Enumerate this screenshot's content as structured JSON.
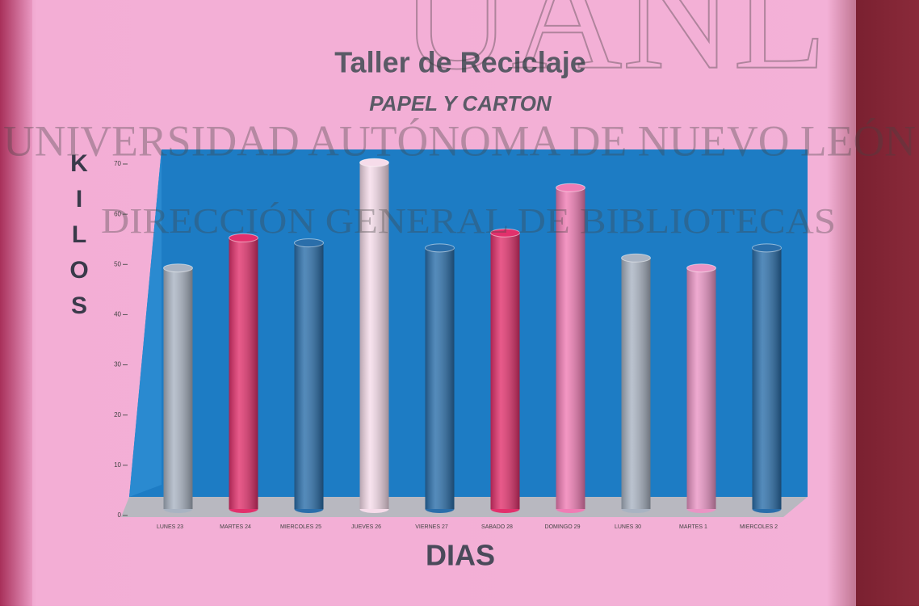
{
  "chart_data": {
    "type": "bar3d",
    "title": "Taller de Reciclaje",
    "subtitle": "PAPEL Y CARTON",
    "y_label": "KILOS",
    "x_label": "DIAS",
    "categories": [
      "LUNES 23",
      "MARTES 24",
      "MIERCOLES 25",
      "JUEVES 26",
      "VIERNES 27",
      "SABADO 28",
      "DOMINGO 29",
      "LUNES 30",
      "MARTES 1",
      "MIERCOLES 2"
    ],
    "values": [
      48,
      54,
      53,
      69,
      52,
      55,
      64,
      50,
      48,
      52
    ],
    "colors": [
      "#a9b3c2",
      "#e2306c",
      "#2a6eaa",
      "#f6dcea",
      "#2a6eaa",
      "#e2306c",
      "#f07cb4",
      "#a9b3c2",
      "#ea94c4",
      "#2a6eaa"
    ],
    "ylim": [
      0,
      70
    ],
    "yticks": [
      0,
      10,
      20,
      30,
      40,
      50,
      60,
      70
    ]
  },
  "watermark": {
    "logo": "UANL",
    "line1": "UNIVERSIDAD AUTÓNOMA DE NUEVO LEÓN",
    "line2": "DIRECCIÓN GENERAL DE BIBLIOTECAS"
  }
}
